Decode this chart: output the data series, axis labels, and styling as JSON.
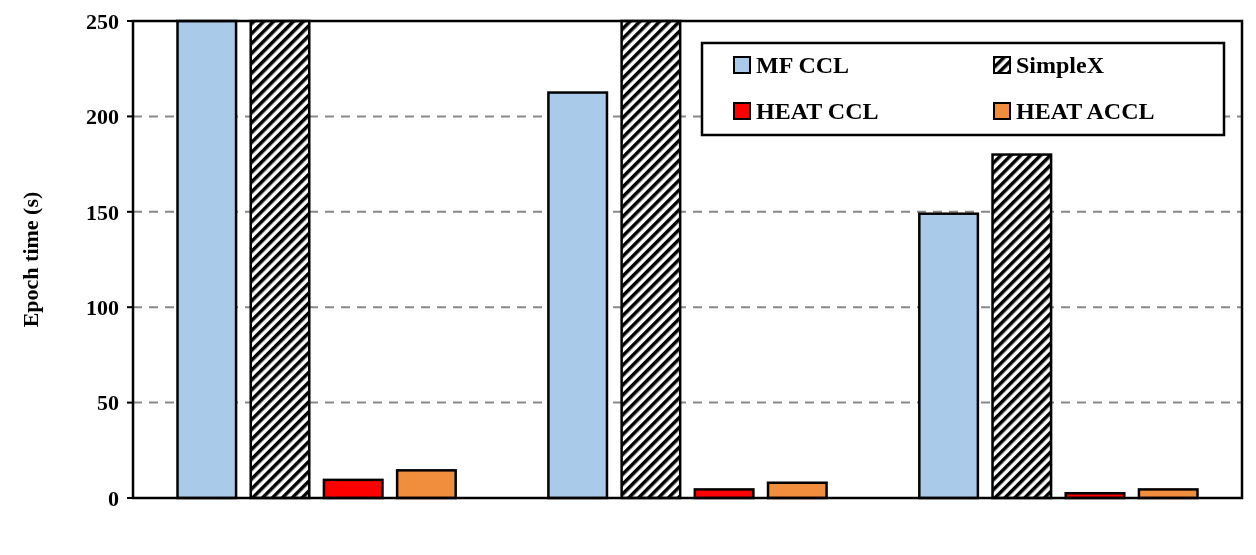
{
  "chart_data": {
    "type": "bar",
    "ylabel": "Epoch time (s)",
    "categories": [
      null,
      null,
      null
    ],
    "series": [
      {
        "name": "MF CCL",
        "color": "#a9cae8",
        "values": [
          250,
          212.5,
          149
        ]
      },
      {
        "name": "SimpleX",
        "color": "#000000",
        "values": [
          250,
          250,
          180
        ]
      },
      {
        "name": "HEAT CCL",
        "color": "#ff0000",
        "values": [
          9.5,
          4.5,
          2.5
        ]
      },
      {
        "name": "HEAT ACCL",
        "color": "#f08e3e",
        "values": [
          14.5,
          8,
          4.5
        ]
      }
    ],
    "ylim": [
      0,
      250
    ],
    "yticks": [
      0,
      50,
      100,
      150,
      200,
      250
    ],
    "grid": "y",
    "legend": "top right"
  }
}
